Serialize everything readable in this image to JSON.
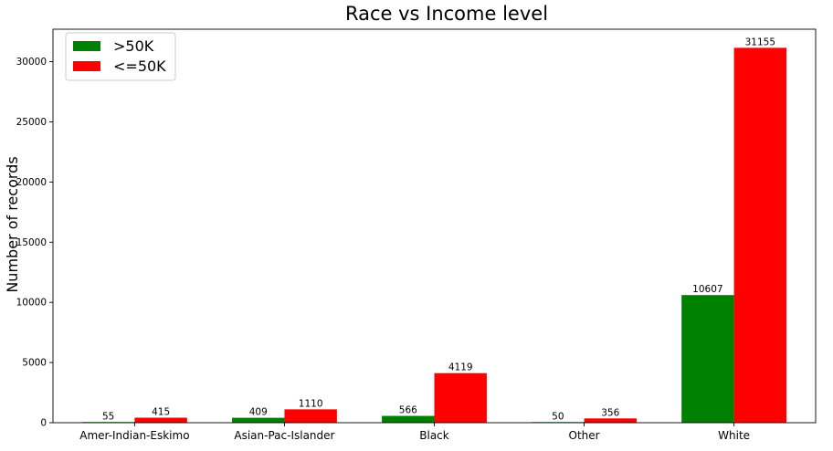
{
  "chart_data": {
    "type": "bar",
    "title": "Race vs Income level",
    "xlabel": "",
    "ylabel": "Number of records",
    "categories": [
      "Amer-Indian-Eskimo",
      "Asian-Pac-Islander",
      "Black",
      "Other",
      "White"
    ],
    "series": [
      {
        "name": ">50K",
        "color": "#008000",
        "values": [
          55,
          409,
          566,
          50,
          10607
        ]
      },
      {
        "name": "<=50K",
        "color": "#ff0000",
        "values": [
          415,
          1110,
          4119,
          356,
          31155
        ]
      }
    ],
    "ylim": [
      0,
      32700
    ],
    "yticks": [
      0,
      5000,
      10000,
      15000,
      20000,
      25000,
      30000
    ],
    "grid": false,
    "legend_position": "top-left",
    "show_data_labels": true
  }
}
